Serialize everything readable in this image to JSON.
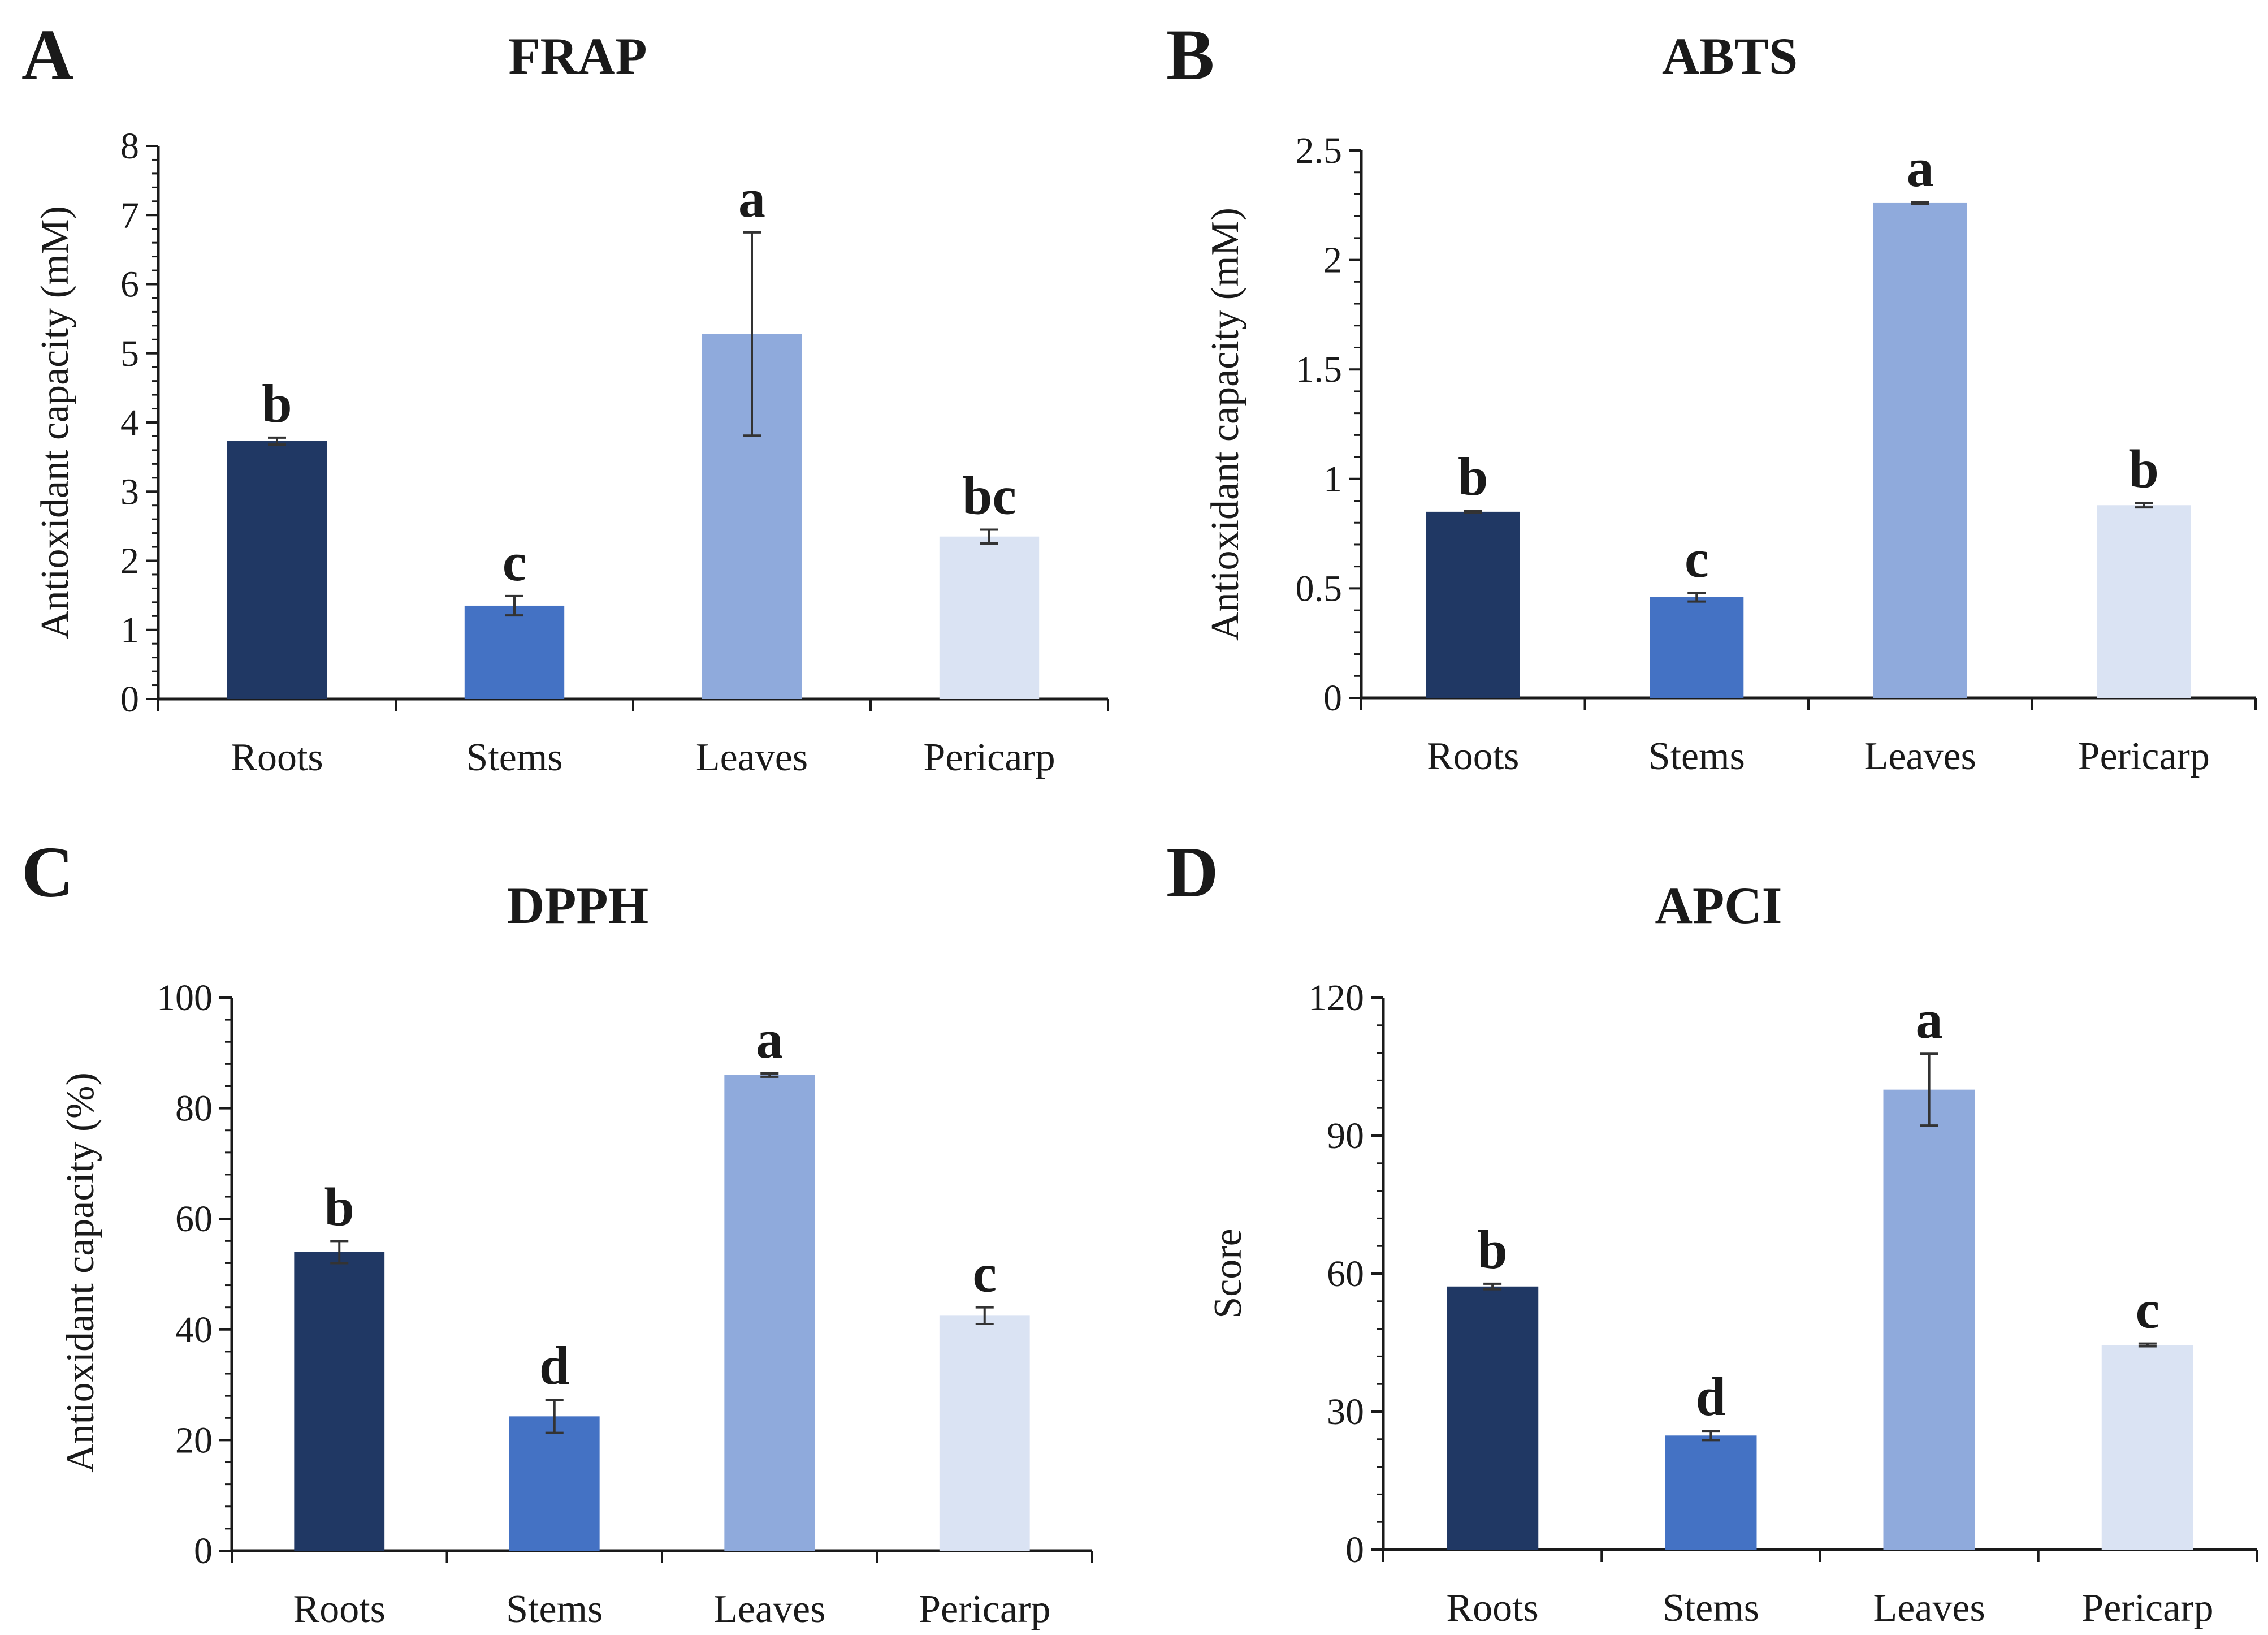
{
  "chart_data": [
    {
      "panel": "A",
      "title": "FRAP",
      "type": "bar",
      "ylabel": "Antioxidant capacity (mM)",
      "categories": [
        "Roots",
        "Stems",
        "Leaves",
        "Pericarp"
      ],
      "values": [
        3.73,
        1.35,
        5.28,
        2.35
      ],
      "errors": [
        0.05,
        0.14,
        1.47,
        0.1
      ],
      "significance": [
        "b",
        "c",
        "a",
        "bc"
      ],
      "ylim": [
        0,
        8
      ],
      "yticks": [
        0,
        1,
        2,
        3,
        4,
        5,
        6,
        7,
        8
      ],
      "ytick_labels": [
        "0",
        "1",
        "2",
        "3",
        "4",
        "5",
        "6",
        "7",
        "8"
      ],
      "colors": [
        "#203864",
        "#4472c4",
        "#8faadc",
        "#dae3f3"
      ]
    },
    {
      "panel": "B",
      "title": "ABTS",
      "type": "bar",
      "ylabel": "Antioxidant capacity (mM)",
      "categories": [
        "Roots",
        "Stems",
        "Leaves",
        "Pericarp"
      ],
      "values": [
        0.85,
        0.46,
        2.26,
        0.88
      ],
      "errors": [
        0.005,
        0.02,
        0.005,
        0.01
      ],
      "significance": [
        "b",
        "c",
        "a",
        "b"
      ],
      "ylim": [
        0,
        2.5
      ],
      "yticks": [
        0,
        0.5,
        1,
        1.5,
        2,
        2.5
      ],
      "ytick_labels": [
        "0",
        "0.5",
        "1",
        "1.5",
        "2",
        "2.5"
      ],
      "colors": [
        "#203864",
        "#4472c4",
        "#8faadc",
        "#dae3f3"
      ]
    },
    {
      "panel": "C",
      "title": "DPPH",
      "type": "bar",
      "ylabel": "Antioxidant capacity (%)",
      "categories": [
        "Roots",
        "Stems",
        "Leaves",
        "Pericarp"
      ],
      "values": [
        54,
        24.3,
        86,
        42.5
      ],
      "errors": [
        2.0,
        3.0,
        0.3,
        1.5
      ],
      "significance": [
        "b",
        "d",
        "a",
        "c"
      ],
      "ylim": [
        0,
        100
      ],
      "yticks": [
        0,
        20,
        40,
        60,
        80,
        100
      ],
      "ytick_labels": [
        "0",
        "20",
        "40",
        "60",
        "80",
        "100"
      ],
      "colors": [
        "#203864",
        "#4472c4",
        "#8faadc",
        "#dae3f3"
      ]
    },
    {
      "panel": "D",
      "title": "APCI",
      "type": "bar",
      "ylabel": "Score",
      "categories": [
        "Roots",
        "Stems",
        "Leaves",
        "Pericarp"
      ],
      "values": [
        57.2,
        24.8,
        100,
        44.5
      ],
      "errors": [
        0.6,
        1.0,
        7.8,
        0.3
      ],
      "significance": [
        "b",
        "d",
        "a",
        "c"
      ],
      "ylim": [
        0,
        120
      ],
      "yticks": [
        0,
        30,
        60,
        90,
        120
      ],
      "ytick_labels": [
        "0",
        "30",
        "60",
        "90",
        "120"
      ],
      "colors": [
        "#203864",
        "#4472c4",
        "#8faadc",
        "#dae3f3"
      ]
    }
  ]
}
